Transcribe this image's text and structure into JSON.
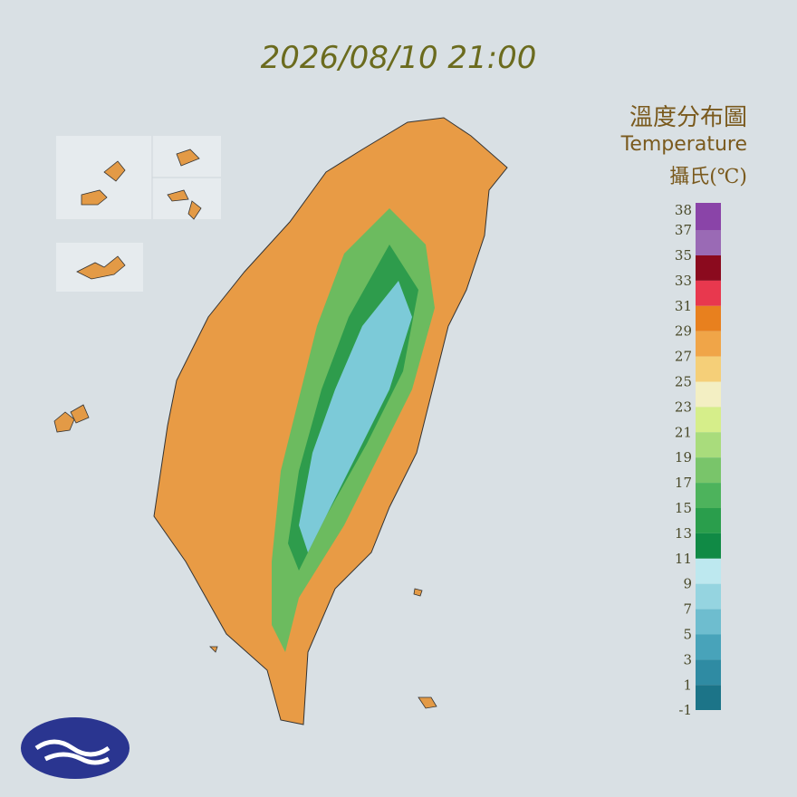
{
  "timestamp": "2026/08/10 21:00",
  "title": "溫度分布圖",
  "subtitle": "Temperature",
  "unit": "攝氏(℃)",
  "legend": {
    "ticks": [
      38,
      37,
      35,
      33,
      31,
      29,
      27,
      25,
      23,
      21,
      19,
      17,
      15,
      13,
      11,
      9,
      7,
      5,
      3,
      1,
      -1
    ],
    "colors": [
      "#8a44a8",
      "#9a6ab5",
      "#8b0a1e",
      "#e8384e",
      "#e8801e",
      "#f0a548",
      "#f5cf78",
      "#f3efc3",
      "#d6ee8a",
      "#a9dc7c",
      "#79c56a",
      "#4db35c",
      "#2a9e4c",
      "#108a45",
      "#bde8ef",
      "#95d4e0",
      "#6ebdcf",
      "#48a3ba",
      "#2f8ba3",
      "#1c7488"
    ]
  }
}
